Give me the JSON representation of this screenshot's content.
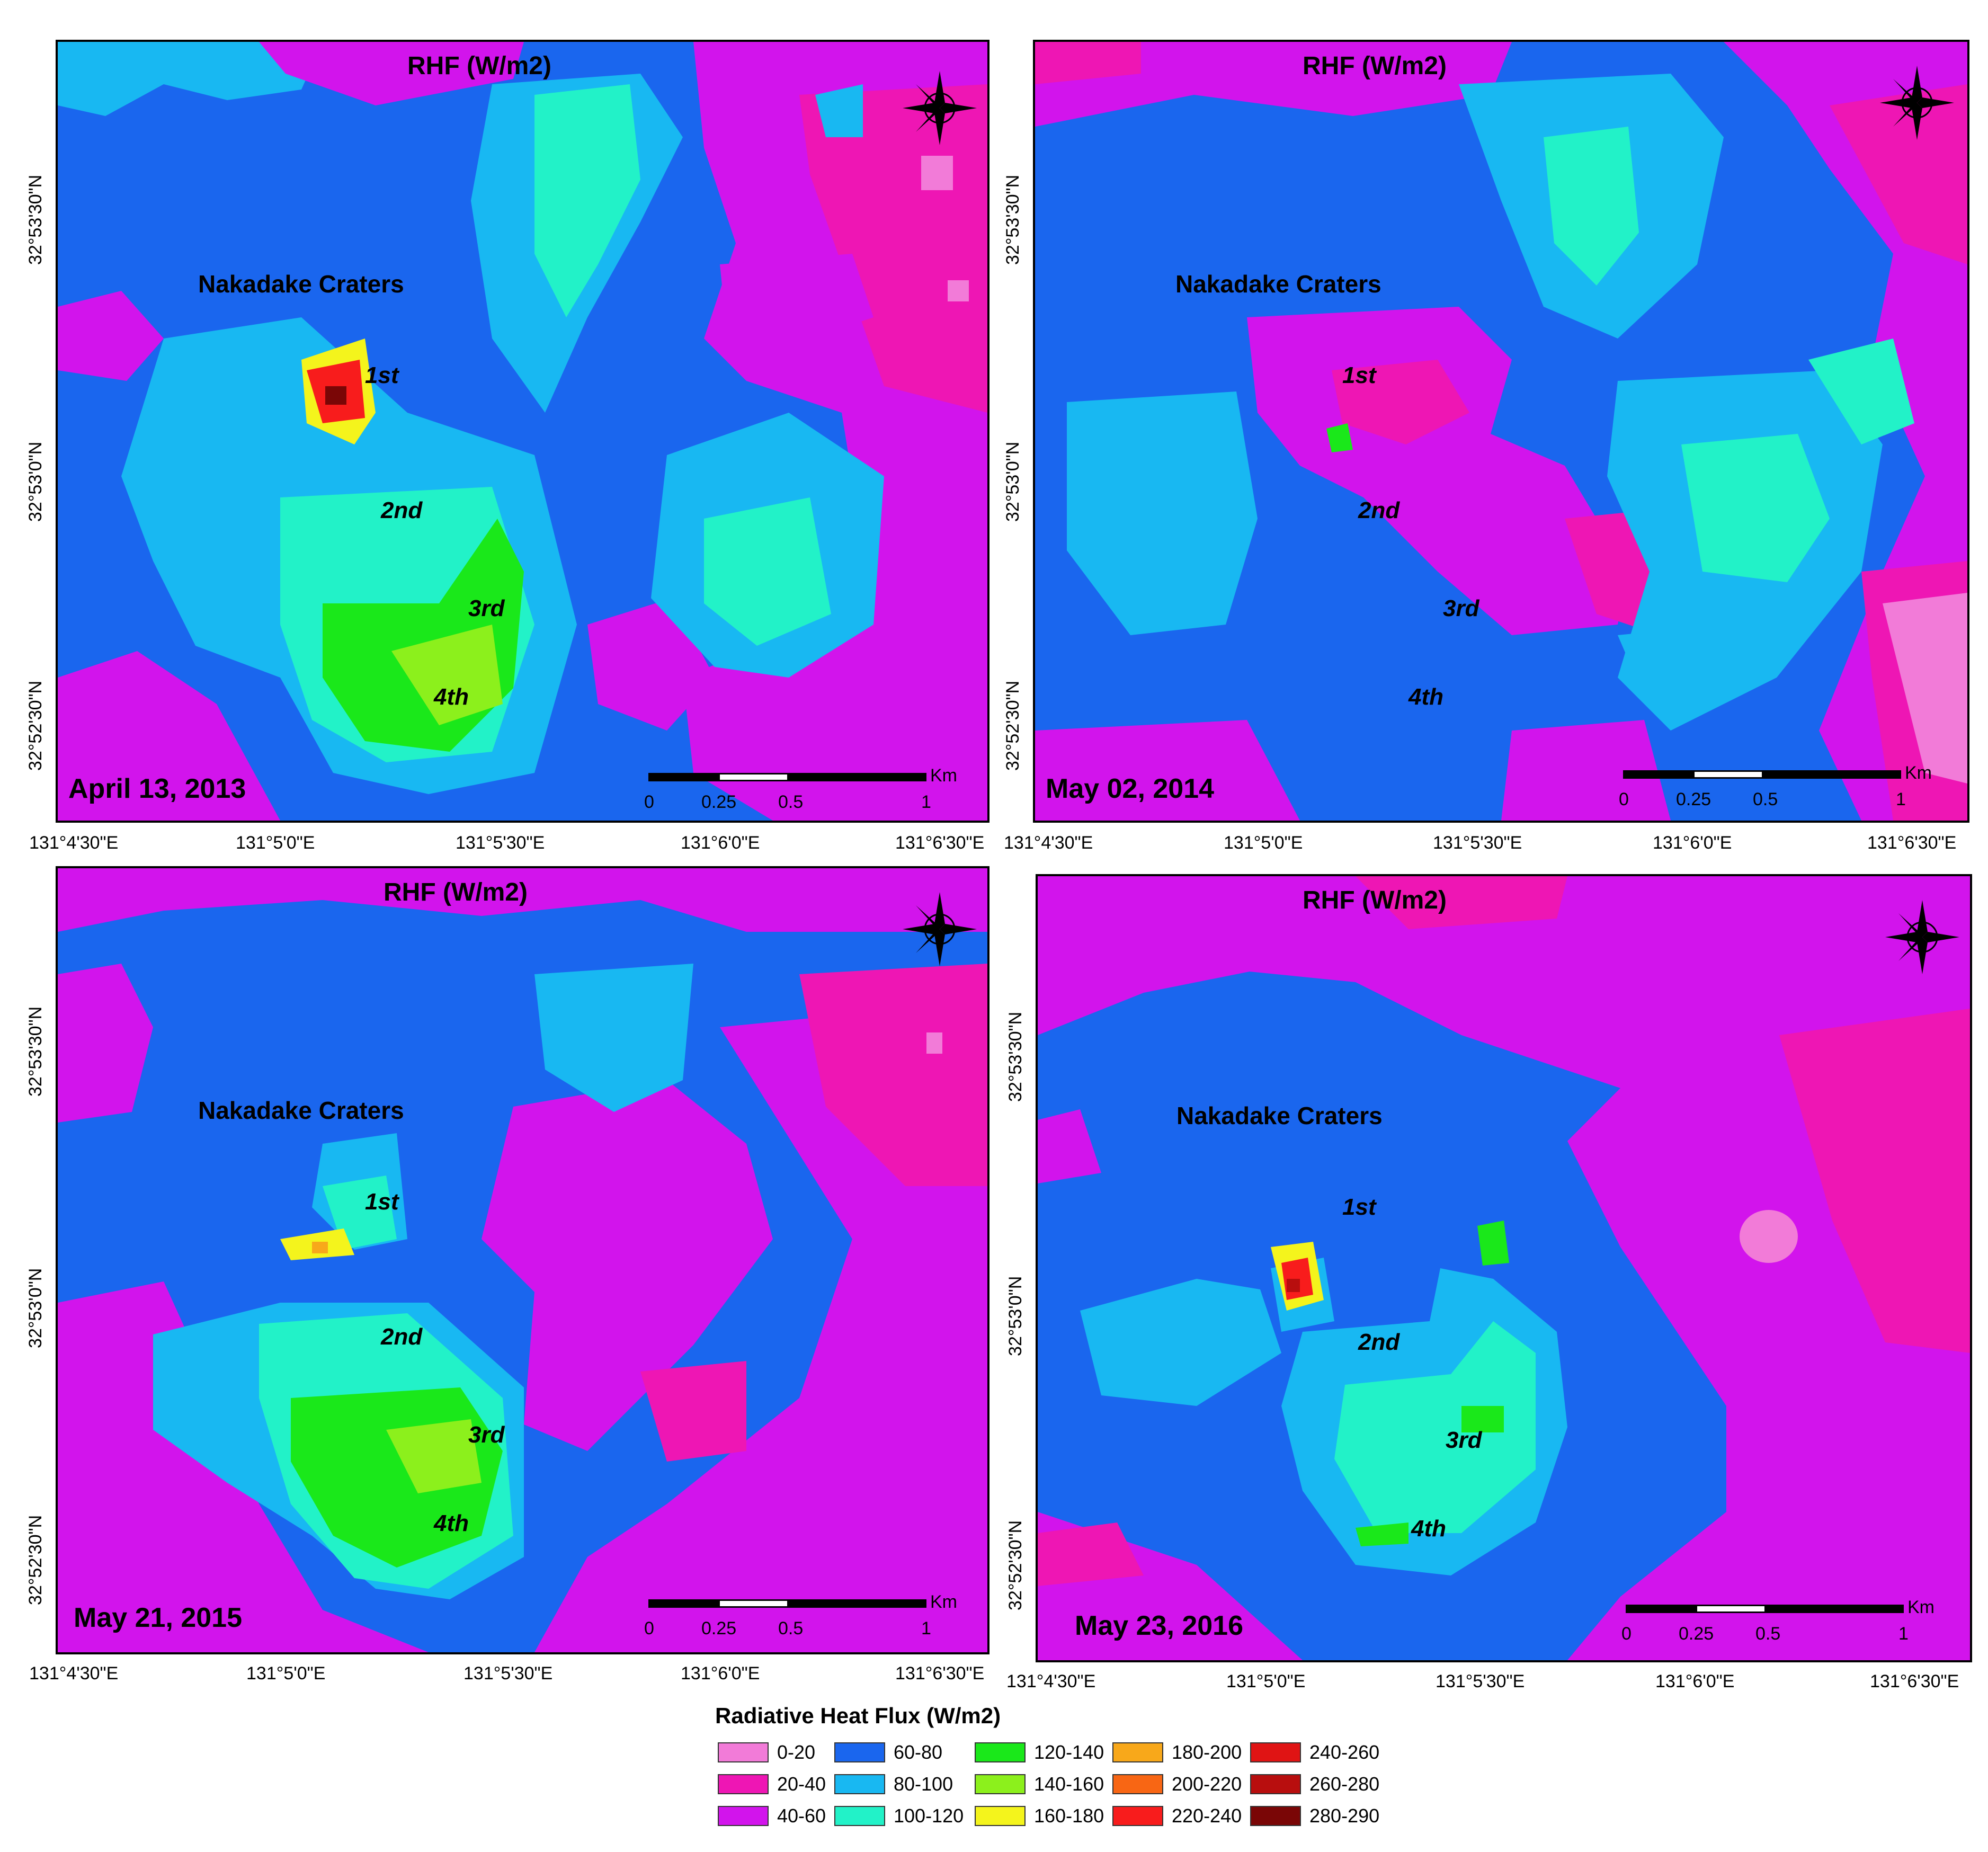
{
  "legend": {
    "title": "Radiative Heat Flux (W/m2)",
    "classes": [
      {
        "range": "0-20",
        "color": "#f27bd8"
      },
      {
        "range": "20-40",
        "color": "#ee16b4"
      },
      {
        "range": "40-60",
        "color": "#d214ec"
      },
      {
        "range": "60-80",
        "color": "#1a66ee"
      },
      {
        "range": "80-100",
        "color": "#18b8f2"
      },
      {
        "range": "100-120",
        "color": "#22f2c8"
      },
      {
        "range": "120-140",
        "color": "#1ae81a"
      },
      {
        "range": "140-160",
        "color": "#8cf01c"
      },
      {
        "range": "160-180",
        "color": "#f4f41c"
      },
      {
        "range": "180-200",
        "color": "#f8a81a"
      },
      {
        "range": "200-220",
        "color": "#f86614"
      },
      {
        "range": "220-240",
        "color": "#f81c1c"
      },
      {
        "range": "240-260",
        "color": "#e01414"
      },
      {
        "range": "260-280",
        "color": "#b80e0e"
      },
      {
        "range": "280-290",
        "color": "#7a0606"
      }
    ]
  },
  "panels": [
    {
      "title": "RHF (W/m2)",
      "date": "April 13, 2013",
      "craters_title": "Nakadake Craters",
      "crater_labels": [
        "1st",
        "2nd",
        "3rd",
        "4th"
      ],
      "lon_labels": [
        "131°4'30\"E",
        "131°5'0\"E",
        "131°5'30\"E",
        "131°6'0\"E",
        "131°6'30\"E"
      ],
      "lat_labels": [
        "32°53'30\"N",
        "32°53'0\"N",
        "32°52'30\"N"
      ],
      "scale": {
        "ticks": [
          "0",
          "0.25",
          "0.5",
          "1"
        ],
        "unit": "Km"
      }
    },
    {
      "title": "RHF (W/m2)",
      "date": "May 02, 2014",
      "craters_title": "Nakadake Craters",
      "crater_labels": [
        "1st",
        "2nd",
        "3rd",
        "4th"
      ],
      "lon_labels": [
        "131°4'30\"E",
        "131°5'0\"E",
        "131°5'30\"E",
        "131°6'0\"E",
        "131°6'30\"E"
      ],
      "lat_labels": [
        "32°53'30\"N",
        "32°53'0\"N",
        "32°52'30\"N"
      ],
      "scale": {
        "ticks": [
          "0",
          "0.25",
          "0.5",
          "1"
        ],
        "unit": "Km"
      }
    },
    {
      "title": "RHF (W/m2)",
      "date": "May 21, 2015",
      "craters_title": "Nakadake Craters",
      "crater_labels": [
        "1st",
        "2nd",
        "3rd",
        "4th"
      ],
      "lon_labels": [
        "131°4'30\"E",
        "131°5'0\"E",
        "131°5'30\"E",
        "131°6'0\"E",
        "131°6'30\"E"
      ],
      "lat_labels": [
        "32°53'30\"N",
        "32°53'0\"N",
        "32°52'30\"N"
      ],
      "scale": {
        "ticks": [
          "0",
          "0.25",
          "0.5",
          "1"
        ],
        "unit": "Km"
      }
    },
    {
      "title": "RHF (W/m2)",
      "date": "May 23, 2016",
      "craters_title": "Nakadake Craters",
      "crater_labels": [
        "1st",
        "2nd",
        "3rd",
        "4th"
      ],
      "lon_labels": [
        "131°4'30\"E",
        "131°5'0\"E",
        "131°5'30\"E",
        "131°6'0\"E",
        "131°6'30\"E"
      ],
      "lat_labels": [
        "32°53'30\"N",
        "32°53'0\"N",
        "32°52'30\"N"
      ],
      "scale": {
        "ticks": [
          "0",
          "0.25",
          "0.5",
          "1"
        ],
        "unit": "Km"
      }
    }
  ]
}
